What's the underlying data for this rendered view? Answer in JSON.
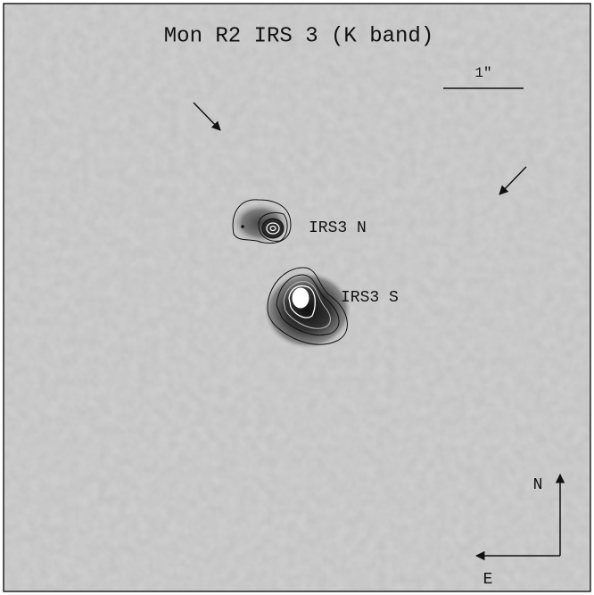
{
  "title": "Mon R2 IRS 3 (K band)",
  "scale_label": "1″",
  "sources": [
    {
      "label": "IRS3 N"
    },
    {
      "label": "IRS3 S"
    }
  ],
  "compass": {
    "north": "N",
    "east": "E"
  }
}
